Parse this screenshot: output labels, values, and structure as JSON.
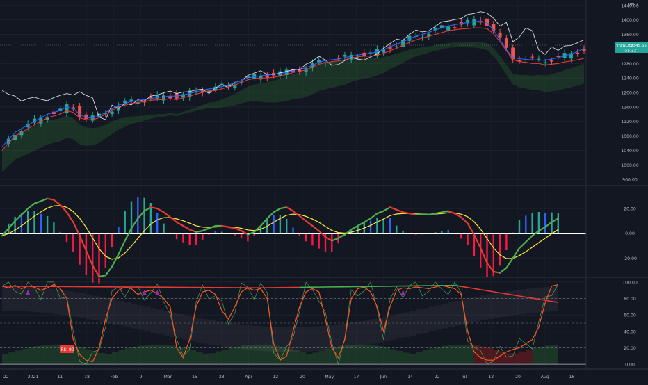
{
  "chart_data": [
    {
      "type": "line",
      "panel": "price",
      "currency_label": "VND",
      "ticker_badge": {
        "symbol": "VNINDEX",
        "price": "1345.55",
        "sub": "55.32"
      },
      "y_ticks": [
        "1440.00",
        "1400.00",
        "1360.00",
        "1320.00",
        "1280.00",
        "1240.00",
        "1200.00",
        "1160.00",
        "1120.00",
        "1080.00",
        "1040.00",
        "1000.00",
        "960.00"
      ],
      "ylim": [
        945,
        1455
      ],
      "x_ticks": [
        "22",
        "2021",
        "11",
        "18",
        "Feb",
        "9",
        "Mar",
        "15",
        "23",
        "Apr",
        "12",
        "20",
        "May",
        "17",
        "Jun",
        "14",
        "22",
        "Jul",
        "12",
        "20",
        "Aug",
        "16"
      ],
      "series": [
        {
          "color": "#ffffff",
          "values": [
            1205,
            1195,
            1190,
            1176,
            1183,
            1187,
            1181,
            1177,
            1186,
            1192,
            1197,
            1193,
            1202,
            1192,
            1185,
            1132,
            1125,
            1165,
            1156,
            1170,
            1166,
            1180,
            1176,
            1190,
            1193,
            1199,
            1204,
            1197,
            1201,
            1202,
            1207,
            1209,
            1197,
            1213,
            1221,
            1214,
            1228,
            1232,
            1247,
            1253,
            1260,
            1249,
            1249,
            1254,
            1258,
            1263,
            1262,
            1278,
            1286,
            1300,
            1289,
            1275,
            1277,
            1288,
            1296,
            1292,
            1289,
            1298,
            1306,
            1322,
            1335,
            1347,
            1344,
            1360,
            1372,
            1367,
            1370,
            1382,
            1395,
            1397,
            1401,
            1404,
            1415,
            1418,
            1423,
            1419,
            1405,
            1383,
            1393,
            1340,
            1353,
            1378,
            1370,
            1317,
            1305,
            1326,
            1316,
            1328,
            1330,
            1337,
            1345
          ]
        },
        {
          "color": "#e53935",
          "values": [
            1040,
            1060,
            1080,
            1090,
            1100,
            1110,
            1120,
            1130,
            1135,
            1140,
            1150,
            1145,
            1130,
            1125,
            1125,
            1130,
            1140,
            1150,
            1160,
            1165,
            1170,
            1172,
            1175,
            1178,
            1180,
            1180,
            1183,
            1180,
            1185,
            1190,
            1195,
            1200,
            1205,
            1205,
            1210,
            1215,
            1220,
            1228,
            1235,
            1238,
            1240,
            1240,
            1242,
            1245,
            1250,
            1255,
            1258,
            1262,
            1270,
            1278,
            1282,
            1285,
            1287,
            1290,
            1295,
            1298,
            1300,
            1300,
            1303,
            1308,
            1315,
            1322,
            1330,
            1338,
            1345,
            1350,
            1355,
            1360,
            1365,
            1370,
            1373,
            1375,
            1376,
            1378,
            1378,
            1376,
            1362,
            1340,
            1315,
            1290,
            1285,
            1283,
            1280,
            1280,
            1276,
            1278,
            1280,
            1284,
            1287,
            1290,
            1294
          ]
        },
        {
          "color": "#2962ff",
          "values": [
            1050,
            1070,
            1090,
            1100,
            1110,
            1120,
            1130,
            1140,
            1145,
            1150,
            1160,
            1155,
            1140,
            1130,
            1130,
            1135,
            1145,
            1155,
            1165,
            1170,
            1175,
            1178,
            1180,
            1183,
            1186,
            1188,
            1190,
            1190,
            1193,
            1197,
            1202,
            1206,
            1210,
            1212,
            1216,
            1220,
            1227,
            1233,
            1240,
            1243,
            1246,
            1248,
            1250,
            1252,
            1256,
            1260,
            1264,
            1268,
            1275,
            1283,
            1288,
            1290,
            1292,
            1296,
            1300,
            1303,
            1306,
            1308,
            1312,
            1318,
            1326,
            1333,
            1340,
            1348,
            1355,
            1360,
            1366,
            1372,
            1378,
            1383,
            1387,
            1390,
            1393,
            1396,
            1396,
            1392,
            1372,
            1345,
            1318,
            1296,
            1293,
            1291,
            1290,
            1289,
            1289,
            1292,
            1296,
            1301,
            1306,
            1313,
            1321
          ]
        }
      ]
    },
    {
      "type": "bar",
      "panel": "macd",
      "y_ticks": [
        "20.00",
        "0.00",
        "-20.00"
      ],
      "ylim": [
        -35,
        38
      ],
      "macd": [
        -2,
        4,
        10,
        15,
        20,
        24,
        26,
        28,
        27,
        23,
        17,
        9,
        -2,
        -14,
        -26,
        -35,
        -34,
        -27,
        -17,
        -6,
        4,
        12,
        18,
        21,
        20,
        17,
        13,
        9,
        6,
        3,
        1,
        2,
        4,
        6,
        6,
        5,
        4,
        2,
        -1,
        1,
        6,
        12,
        17,
        20,
        21,
        18,
        14,
        10,
        6,
        2,
        -3,
        -6,
        -4,
        -1,
        3,
        6,
        9,
        12,
        16,
        18,
        21,
        19,
        17,
        16,
        15,
        15,
        15,
        16,
        17,
        18,
        16,
        13,
        8,
        -1,
        -12,
        -24,
        -31,
        -32,
        -28,
        -20,
        -12,
        -7,
        -2,
        2,
        5,
        9,
        12
      ]
    },
    {
      "type": "line",
      "panel": "rsi",
      "y_ticks": [
        "100.00",
        "80.00",
        "60.00",
        "40.00",
        "20.00",
        "0.00"
      ],
      "ylim": [
        -5,
        105
      ],
      "label": "RSI 90",
      "stoch": [
        95,
        93,
        96,
        92,
        95,
        94,
        90,
        93,
        97,
        92,
        80,
        30,
        12,
        5,
        3,
        20,
        55,
        80,
        90,
        94,
        92,
        85,
        88,
        90,
        86,
        80,
        70,
        20,
        8,
        30,
        70,
        88,
        90,
        85,
        65,
        55,
        70,
        88,
        93,
        90,
        92,
        80,
        25,
        5,
        10,
        40,
        70,
        88,
        92,
        88,
        55,
        20,
        8,
        30,
        80,
        92,
        94,
        88,
        70,
        40,
        70,
        90,
        93,
        92,
        94,
        93,
        92,
        94,
        96,
        94,
        92,
        85,
        40,
        15,
        8,
        5,
        5,
        10,
        15,
        18,
        20,
        25,
        30,
        45,
        75,
        95,
        97
      ]
    }
  ]
}
